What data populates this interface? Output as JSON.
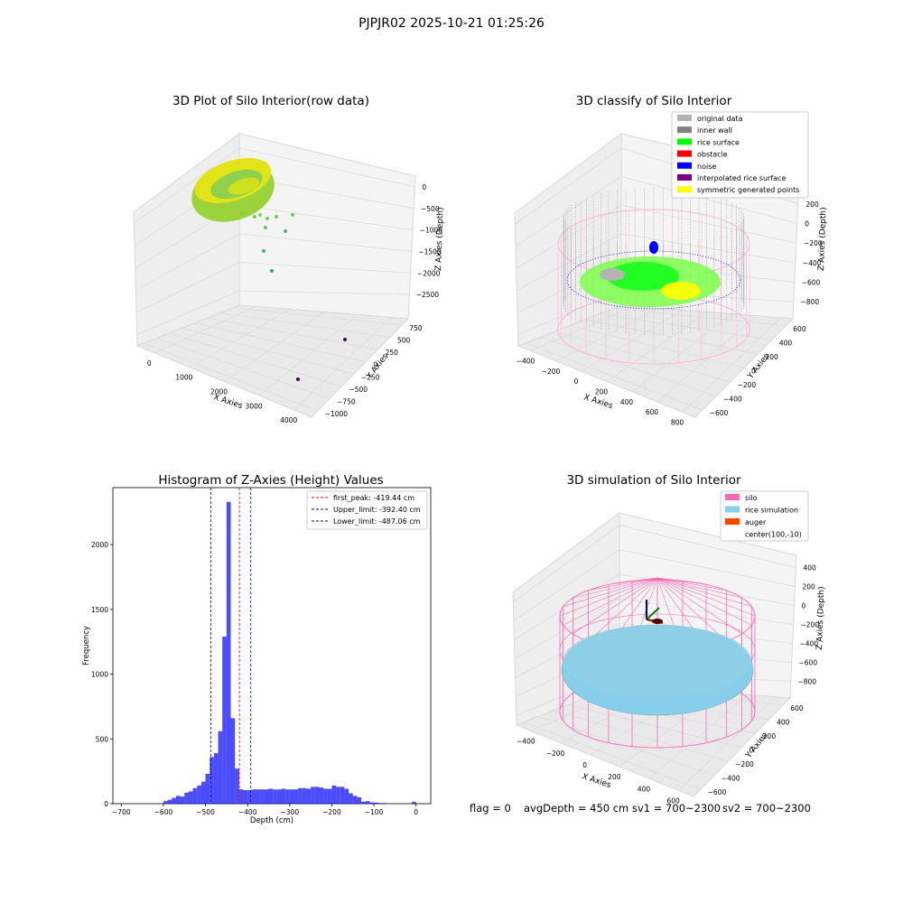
{
  "figure": {
    "suptitle": "PJPJR02 2025-10-21 01:25:26"
  },
  "status": {
    "flag": "flag = 0",
    "avg_depth": "avgDepth = 450 cm",
    "sv1": "sv1 = 700~2300",
    "sv2": "sv2 = 700~2300"
  },
  "colors": {
    "silo": "#ff69b4",
    "rice_simulation": "#87ceeb",
    "auger": "#ff4500",
    "histogram": "#0000ff",
    "first_peak": "#ff0000",
    "limits": "#00008b"
  },
  "chart_data": [
    {
      "type": "scatter",
      "subtype": "3d",
      "title": "3D Plot of Silo Interior(row data)",
      "xlabel": "X Axies",
      "ylabel": "Y Axies",
      "zlabel": "Z Axies (Depth)",
      "xticks": [
        "0",
        "1000",
        "2000",
        "3000",
        "4000"
      ],
      "yticks": [
        "−1000",
        "−750",
        "−500",
        "−250",
        "0",
        "250",
        "500",
        "750"
      ],
      "zticks": [
        "−2500",
        "−2000",
        "−1500",
        "−1000",
        "−500",
        "0"
      ],
      "colormap": "viridis"
    },
    {
      "type": "scatter",
      "subtype": "3d",
      "title": "3D classify of Silo Interior",
      "xlabel": "X Axies",
      "ylabel": "Y Axies",
      "zlabel": "Z Axies (Depth)",
      "xticks": [
        "−400",
        "−200",
        "0",
        "200",
        "400",
        "600",
        "800"
      ],
      "yticks": [
        "−600",
        "−400",
        "−200",
        "0",
        "200",
        "400",
        "600"
      ],
      "zticks": [
        "−800",
        "−600",
        "−400",
        "−200",
        "0",
        "200"
      ],
      "legend_position": "top-right",
      "legend": [
        {
          "label": "original data",
          "color": "#b3b3b3"
        },
        {
          "label": "inner wall",
          "color": "#808080"
        },
        {
          "label": "rice surface",
          "color": "#00ff00"
        },
        {
          "label": "obstacle",
          "color": "#ff0000"
        },
        {
          "label": "noise",
          "color": "#0000ff"
        },
        {
          "label": "interpolated rice surface",
          "color": "#800080"
        },
        {
          "label": "symmetric generated points",
          "color": "#ffff00"
        }
      ]
    },
    {
      "type": "bar",
      "subtype": "histogram",
      "title": "Histogram of Z-Axies (Height) Values",
      "xlabel": "Depth (cm)",
      "ylabel": "Frequency",
      "xlim": [
        -720,
        35
      ],
      "ylim": [
        0,
        2440
      ],
      "xticks": [
        -700,
        -600,
        -500,
        -400,
        -300,
        -200,
        -100,
        0
      ],
      "yticks": [
        0,
        500,
        1000,
        1500,
        2000
      ],
      "bin_width": 10,
      "bins": [
        [
          -600,
          20
        ],
        [
          -590,
          30
        ],
        [
          -580,
          45
        ],
        [
          -570,
          60
        ],
        [
          -560,
          55
        ],
        [
          -550,
          85
        ],
        [
          -540,
          95
        ],
        [
          -530,
          120
        ],
        [
          -520,
          140
        ],
        [
          -510,
          170
        ],
        [
          -500,
          230
        ],
        [
          -490,
          360
        ],
        [
          -480,
          390
        ],
        [
          -470,
          560
        ],
        [
          -460,
          1290
        ],
        [
          -450,
          2330
        ],
        [
          -440,
          660
        ],
        [
          -430,
          270
        ],
        [
          -420,
          110
        ],
        [
          -410,
          105
        ],
        [
          -400,
          105
        ],
        [
          -390,
          110
        ],
        [
          -380,
          110
        ],
        [
          -370,
          110
        ],
        [
          -360,
          110
        ],
        [
          -350,
          115
        ],
        [
          -340,
          110
        ],
        [
          -330,
          110
        ],
        [
          -320,
          115
        ],
        [
          -310,
          110
        ],
        [
          -300,
          110
        ],
        [
          -290,
          110
        ],
        [
          -280,
          120
        ],
        [
          -270,
          120
        ],
        [
          -260,
          115
        ],
        [
          -250,
          130
        ],
        [
          -240,
          130
        ],
        [
          -230,
          125
        ],
        [
          -220,
          115
        ],
        [
          -210,
          115
        ],
        [
          -200,
          140
        ],
        [
          -190,
          130
        ],
        [
          -180,
          130
        ],
        [
          -170,
          115
        ],
        [
          -160,
          80
        ],
        [
          -150,
          60
        ],
        [
          -140,
          50
        ],
        [
          -130,
          15
        ],
        [
          -120,
          20
        ],
        [
          -110,
          10
        ],
        [
          -100,
          8
        ],
        [
          -90,
          5
        ],
        [
          -80,
          5
        ],
        [
          -10,
          15
        ]
      ],
      "vlines": [
        {
          "label": "first_peak: -419.44 cm",
          "x": -419.44,
          "color": "#ff0000"
        },
        {
          "label": "Upper_limit: -392.40 cm",
          "x": -392.4,
          "color": "#00008b"
        },
        {
          "label": "Lower_limit: -487.06 cm",
          "x": -487.06,
          "color": "#00008b"
        }
      ],
      "legend_position": "top-right"
    },
    {
      "type": "scatter",
      "subtype": "3d-surface",
      "title": "3D simulation of Silo Interior",
      "xlabel": "X Axies",
      "ylabel": "Y Axies",
      "zlabel": "Z Axies (Depth)",
      "xticks": [
        "−400",
        "−200",
        "0",
        "200",
        "400",
        "600"
      ],
      "yticks": [
        "−600",
        "−400",
        "−200",
        "0",
        "200",
        "400",
        "600"
      ],
      "zticks": [
        "−800",
        "−600",
        "−400",
        "−200",
        "0",
        "200",
        "400"
      ],
      "legend_position": "top-right",
      "legend": [
        {
          "label": "silo",
          "color": "#ff69b4"
        },
        {
          "label": "rice simulation",
          "color": "#87ceeb"
        },
        {
          "label": "auger",
          "color": "#ff4500"
        },
        {
          "label": "center(100,-10)",
          "color": ""
        }
      ]
    }
  ]
}
